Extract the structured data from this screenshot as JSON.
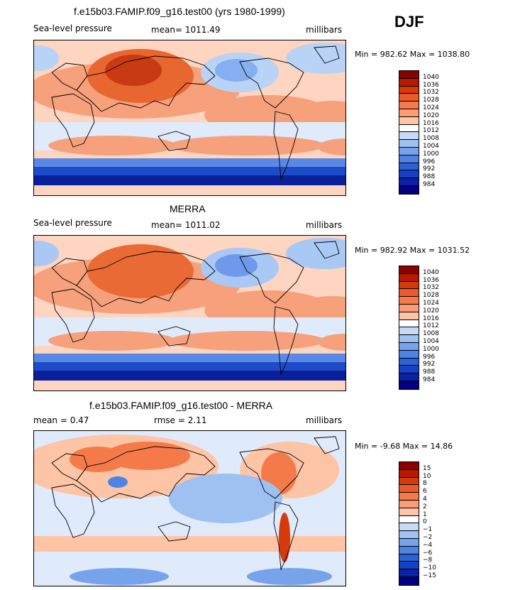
{
  "season": "DJF",
  "panels": [
    {
      "title": "f.e15b03.FAMIP.f09_g16.test00 (yrs 1980-1999)",
      "left_label": "Sea-level pressure",
      "center_label": "mean= 1011.49",
      "right_label": "millibars",
      "minmax": "Min = 982.62 Max = 1038.80",
      "colorbar_labels": [
        "1040",
        "1036",
        "1032",
        "1028",
        "1024",
        "1020",
        "1016",
        "1012",
        "1008",
        "1004",
        "1000",
        "996",
        "992",
        "988",
        "984"
      ],
      "colorbar_colors": [
        "#8b0000",
        "#b51a00",
        "#d63a0a",
        "#ea5a2a",
        "#f57a4a",
        "#fb9c76",
        "#fdc4a6",
        "#ffffff",
        "#c6dbf7",
        "#9ec1f2",
        "#76a3ec",
        "#4e83e3",
        "#2c62d8",
        "#1542c5",
        "#0a22a8",
        "#000080"
      ]
    },
    {
      "title": "MERRA",
      "left_label": "Sea-level pressure",
      "center_label": "mean= 1011.02",
      "right_label": "millibars",
      "minmax": "Min = 982.92 Max = 1031.52",
      "colorbar_labels": [
        "1040",
        "1036",
        "1032",
        "1028",
        "1024",
        "1020",
        "1016",
        "1012",
        "1008",
        "1004",
        "1000",
        "996",
        "992",
        "988",
        "984"
      ],
      "colorbar_colors": [
        "#8b0000",
        "#b51a00",
        "#d63a0a",
        "#ea5a2a",
        "#f57a4a",
        "#fb9c76",
        "#fdc4a6",
        "#ffffff",
        "#c6dbf7",
        "#9ec1f2",
        "#76a3ec",
        "#4e83e3",
        "#2c62d8",
        "#1542c5",
        "#0a22a8",
        "#000080"
      ]
    },
    {
      "title": "f.e15b03.FAMIP.f09_g16.test00 - MERRA",
      "left_label": "mean =    0.47",
      "center_label": "rmse =    2.11",
      "right_label": "millibars",
      "minmax": "Min =  -9.68 Max =  14.86",
      "colorbar_labels": [
        "15",
        "10",
        "8",
        "6",
        "4",
        "2",
        "1",
        "0",
        "−1",
        "−2",
        "−4",
        "−6",
        "−8",
        "−10",
        "−15"
      ],
      "colorbar_colors": [
        "#8b0000",
        "#b51a00",
        "#d63a0a",
        "#ea5a2a",
        "#f57a4a",
        "#fb9c76",
        "#fdc4a6",
        "#ffffff",
        "#c6dbf7",
        "#9ec1f2",
        "#76a3ec",
        "#4e83e3",
        "#2c62d8",
        "#1542c5",
        "#0a22a8",
        "#000080"
      ]
    }
  ],
  "map_fields": [
    {
      "background": "#fdd5c0",
      "blobs": [
        {
          "color": "#f7a07c",
          "shape": "NH subtropical high belt"
        },
        {
          "color": "#e8662f",
          "shape": "Siberian high"
        },
        {
          "color": "#c83a12",
          "shape": "Siberian high core"
        },
        {
          "color": "#b8d3f5",
          "shape": "Aleutian low"
        },
        {
          "color": "#86aef0",
          "shape": "Aleutian low core"
        },
        {
          "color": "#b8d3f5",
          "shape": "Icelandic low"
        },
        {
          "color": "#dfeafb",
          "shape": "Equatorial trough"
        },
        {
          "color": "#f7a07c",
          "shape": "SH subtropical high"
        },
        {
          "color": "#5a88e6",
          "shape": "Southern Ocean low 1"
        },
        {
          "color": "#1e4cc8",
          "shape": "Southern Ocean low 2"
        },
        {
          "color": "#0a1f9a",
          "shape": "Circumpolar trough"
        }
      ]
    },
    {
      "background": "#fdd5c0",
      "blobs": [
        {
          "color": "#f7a07c",
          "shape": "NH subtropical high belt"
        },
        {
          "color": "#ea6a35",
          "shape": "Siberian high"
        },
        {
          "color": "#a9c8f4",
          "shape": "Aleutian low"
        },
        {
          "color": "#6f9aec",
          "shape": "Aleutian low core"
        },
        {
          "color": "#a9c8f4",
          "shape": "Icelandic low"
        },
        {
          "color": "#dfeafb",
          "shape": "Equatorial trough"
        },
        {
          "color": "#f7a07c",
          "shape": "SH subtropical high"
        },
        {
          "color": "#5a88e6",
          "shape": "Southern Ocean low 1"
        },
        {
          "color": "#1e4cc8",
          "shape": "Southern Ocean low 2"
        },
        {
          "color": "#0a1f9a",
          "shape": "Circumpolar trough"
        }
      ]
    },
    {
      "background": "#dfeafb",
      "blobs": [
        {
          "color": "#fdc4a6",
          "shape": "Eurasia positive"
        },
        {
          "color": "#f57a4a",
          "shape": "Eurasia strong positive"
        },
        {
          "color": "#fdc4a6",
          "shape": "North America positive"
        },
        {
          "color": "#f57a4a",
          "shape": "Rockies positive"
        },
        {
          "color": "#9ec1f2",
          "shape": "Pacific negative"
        },
        {
          "color": "#fdc4a6",
          "shape": "Southern band positive"
        },
        {
          "color": "#d63a0a",
          "shape": "Andes positive"
        },
        {
          "color": "#4e83e3",
          "shape": "Tibet negative"
        },
        {
          "color": "#76a3ec",
          "shape": "Antarctic negative"
        }
      ]
    }
  ]
}
